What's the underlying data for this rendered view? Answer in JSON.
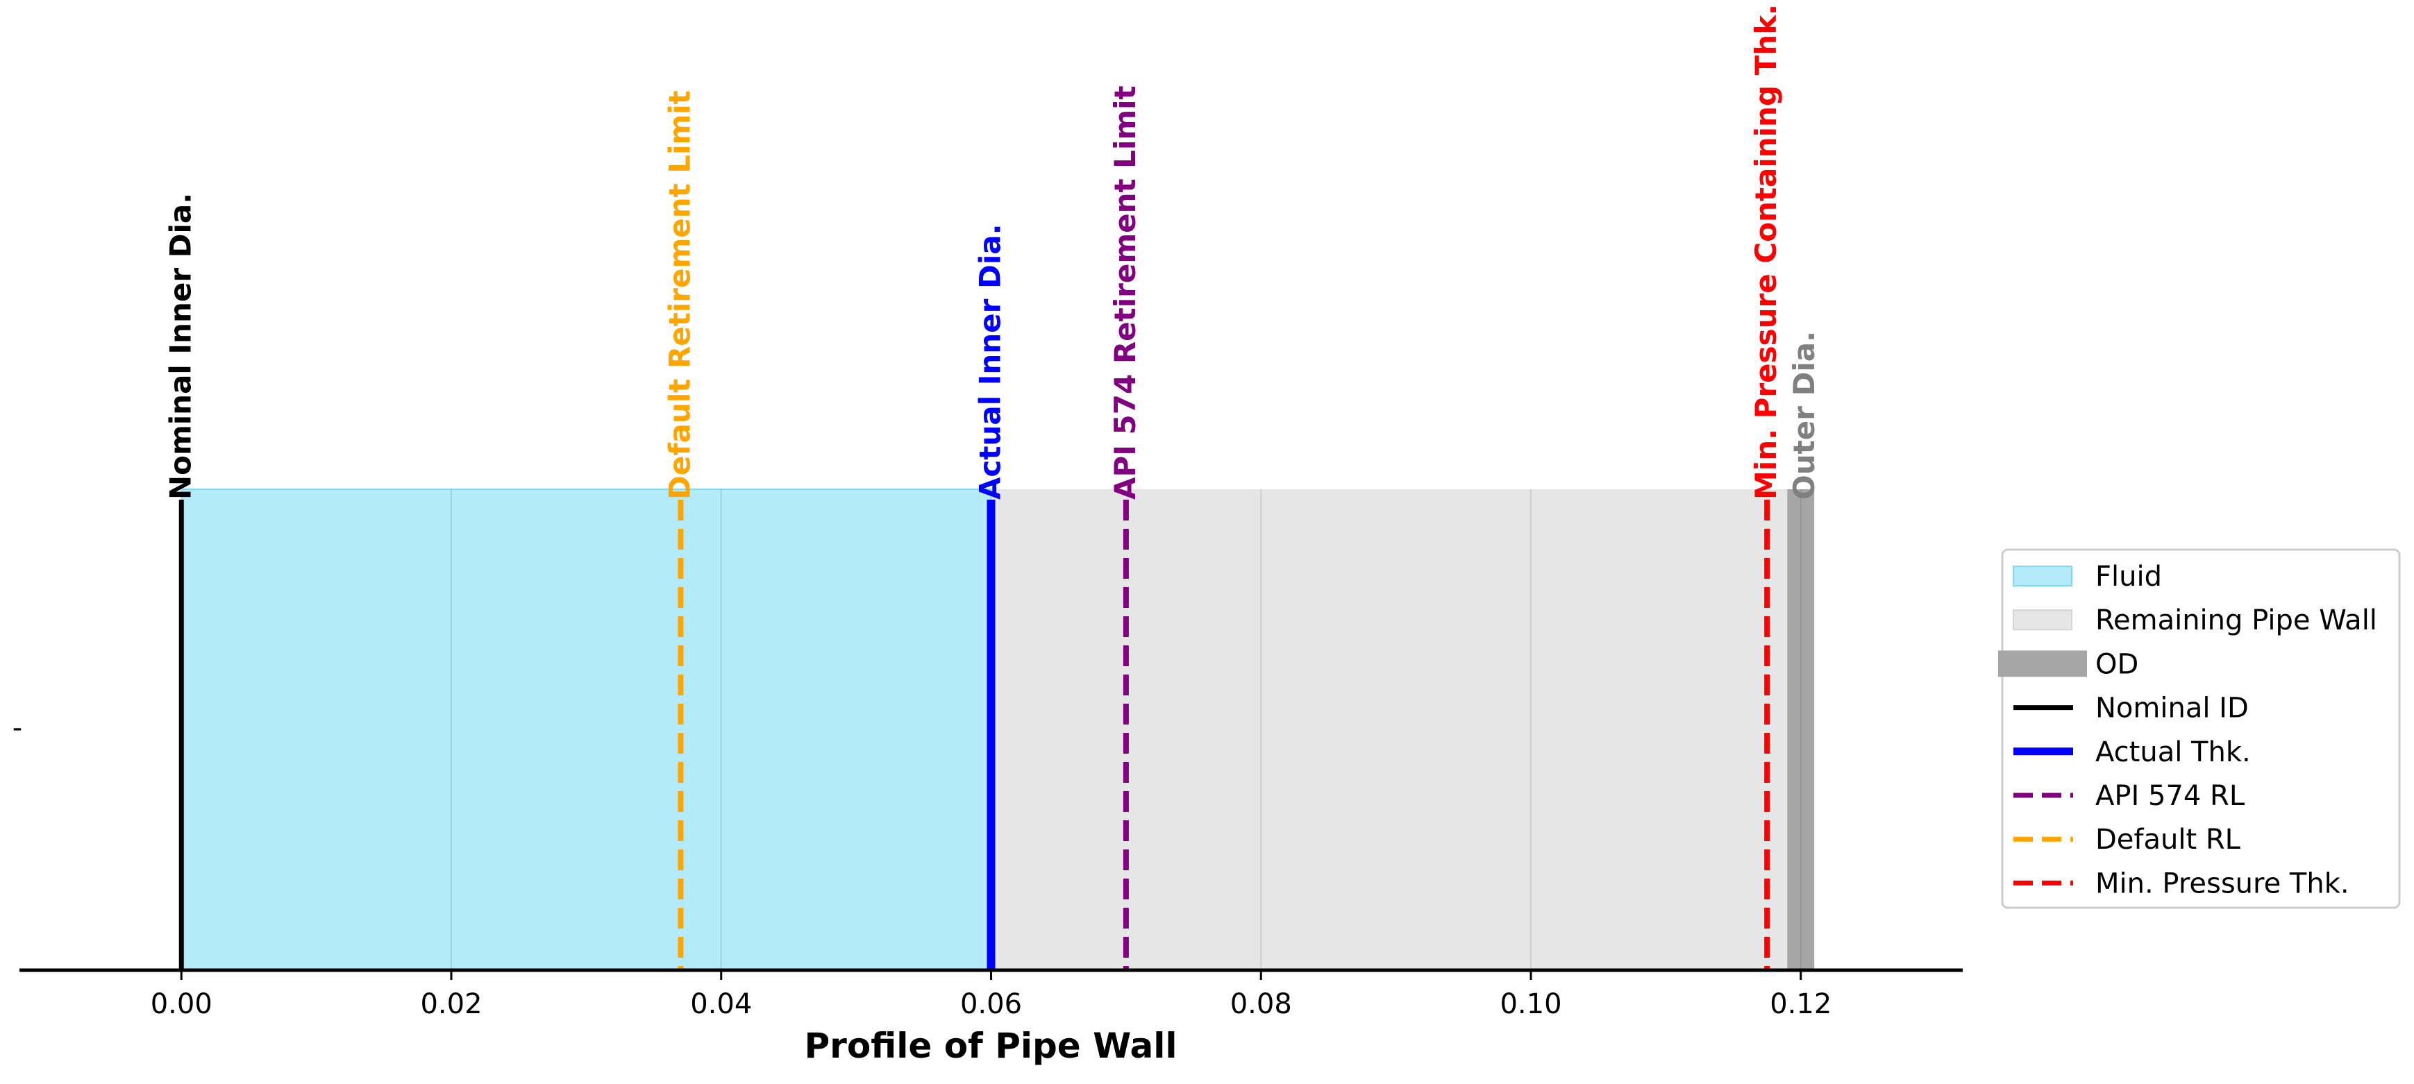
{
  "chart_data": {
    "type": "area",
    "xlabel": "Profile of Pipe Wall",
    "ylabel": "",
    "xlim": [
      -0.012,
      0.132
    ],
    "ylim": [
      0,
      1
    ],
    "x_ticks": [
      0.0,
      0.02,
      0.04,
      0.06,
      0.08,
      0.1,
      0.12
    ],
    "x_tick_labels": [
      "0.00",
      "0.02",
      "0.04",
      "0.06",
      "0.08",
      "0.10",
      "0.12"
    ],
    "y_tick_labels": [
      "-"
    ],
    "grid": "vertical",
    "legend_position": "center-right, outside",
    "regions": [
      {
        "name": "Fluid",
        "x_start": 0.0,
        "x_end": 0.06,
        "color": "#b3ebfb"
      },
      {
        "name": "Remaining Pipe Wall",
        "x_start": 0.06,
        "x_end": 0.119,
        "color": "#e6e6e6"
      },
      {
        "name": "OD",
        "x_start": 0.119,
        "x_end": 0.121,
        "color": "#a6a6a6"
      }
    ],
    "lines": [
      {
        "name": "Nominal ID",
        "x": 0.0,
        "color": "#000000",
        "style": "solid",
        "label": "Nominal Inner Dia."
      },
      {
        "name": "Default RL",
        "x": 0.037,
        "color": "#ffa500",
        "style": "dashed",
        "label": "Default Retirement Limit"
      },
      {
        "name": "Actual Thk.",
        "x": 0.06,
        "color": "#0000ff",
        "style": "solid",
        "label": "Actual Inner Dia."
      },
      {
        "name": "API 574 RL",
        "x": 0.07,
        "color": "#800080",
        "style": "dashed",
        "label": "API 574 Retirement Limit"
      },
      {
        "name": "Min. Pressure Thk.",
        "x": 0.1175,
        "color": "#ff0000",
        "style": "dashed",
        "label": "Min. Pressure Containing Thk."
      }
    ],
    "od_label": {
      "x": 0.12,
      "text": "Outer Dia.",
      "color": "#808080"
    },
    "legend": [
      {
        "label": "Fluid",
        "kind": "patch",
        "color": "#b3ebfb"
      },
      {
        "label": "Remaining Pipe Wall",
        "kind": "patch",
        "color": "#e6e6e6"
      },
      {
        "label": "OD",
        "kind": "thick",
        "color": "#a6a6a6"
      },
      {
        "label": "Nominal ID",
        "kind": "line",
        "color": "#000000"
      },
      {
        "label": "Actual Thk.",
        "kind": "line-bold",
        "color": "#0000ff"
      },
      {
        "label": "API 574 RL",
        "kind": "dash",
        "color": "#800080"
      },
      {
        "label": "Default RL",
        "kind": "dash",
        "color": "#ffa500"
      },
      {
        "label": "Min. Pressure Thk.",
        "kind": "dash",
        "color": "#ff0000"
      }
    ]
  }
}
